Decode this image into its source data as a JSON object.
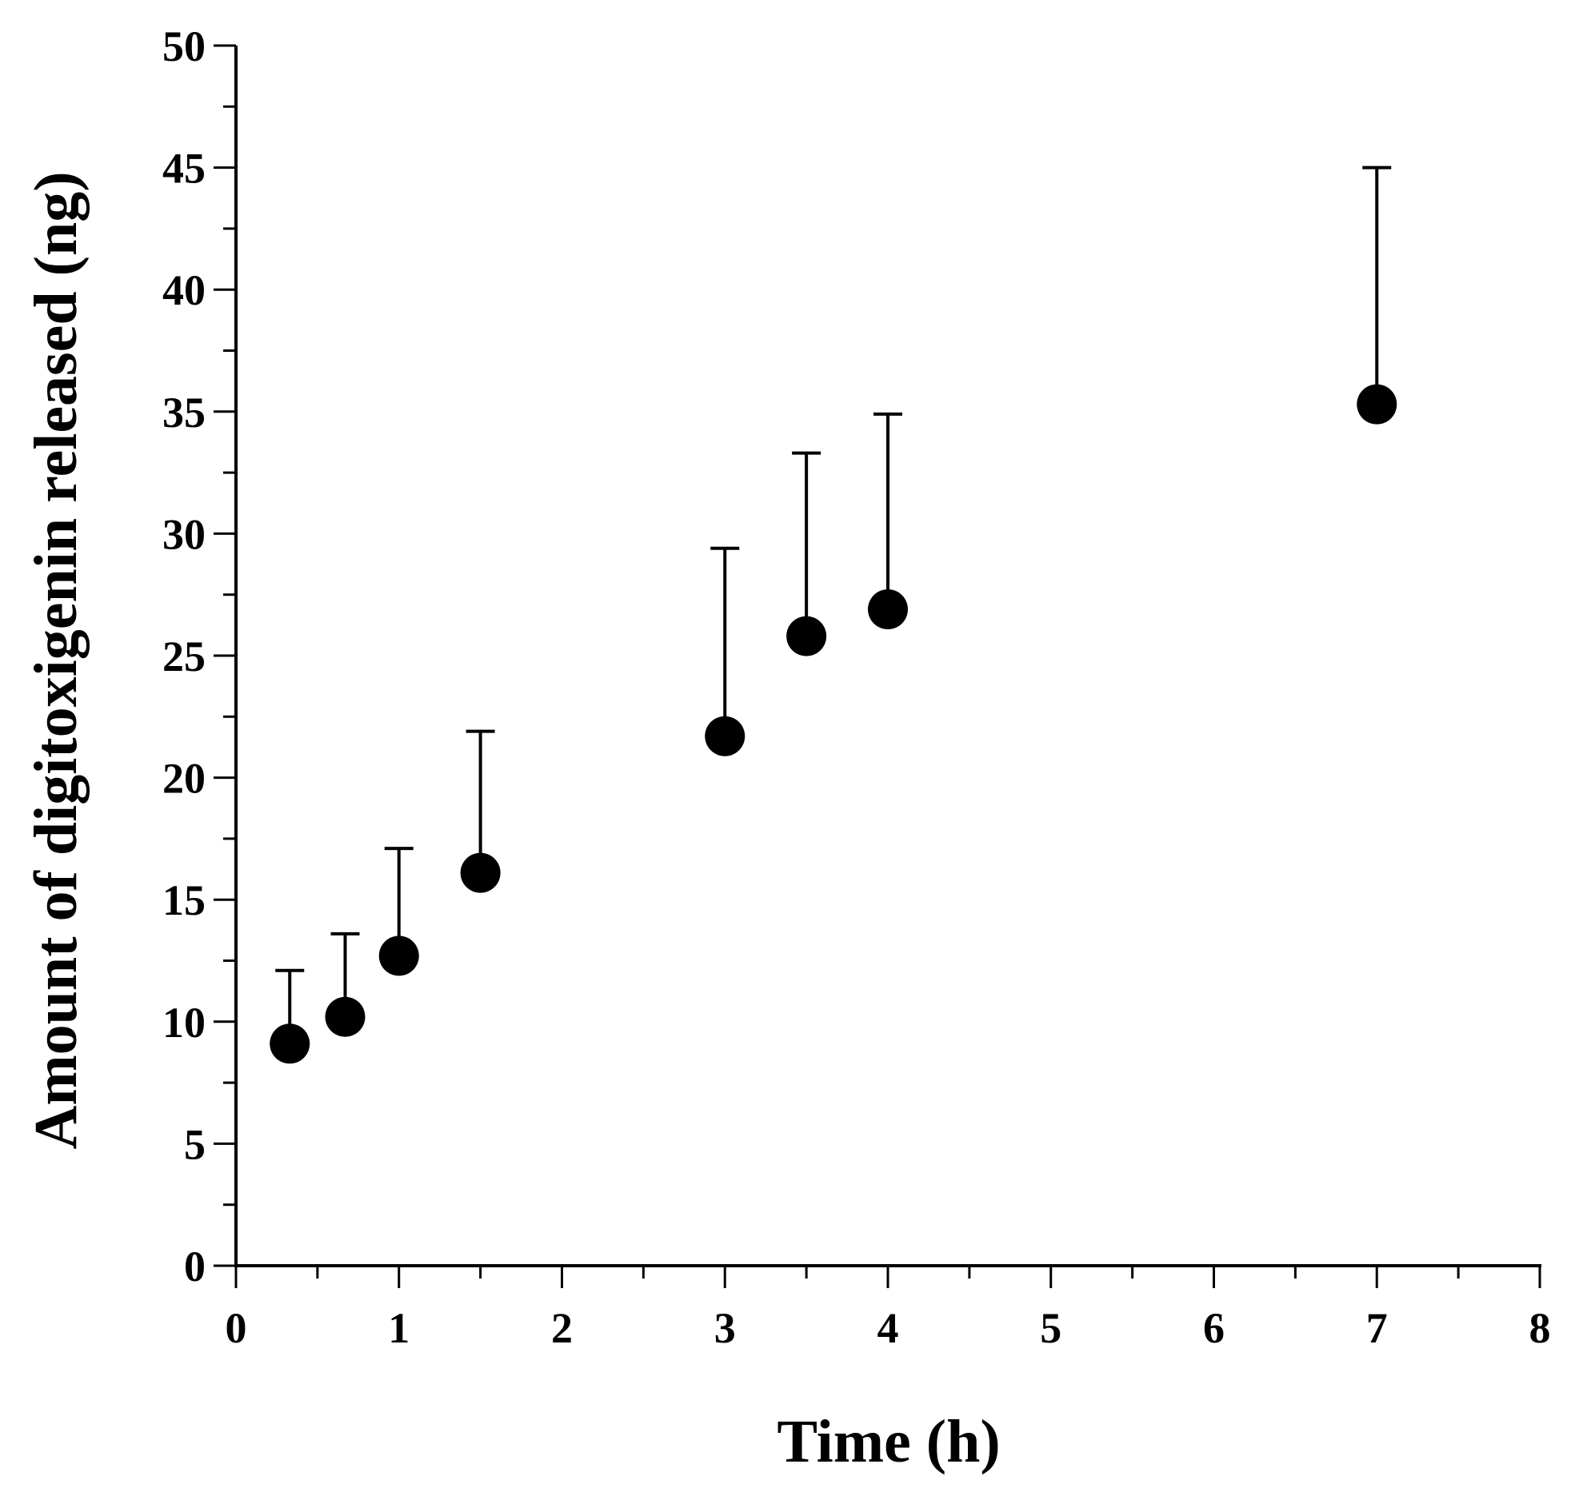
{
  "chart_data": {
    "type": "scatter",
    "title": "",
    "xlabel": "Time (h)",
    "ylabel": "Amount of digitoxigenin released (ng)",
    "xlim": [
      0,
      8
    ],
    "ylim": [
      0,
      50
    ],
    "x_major_ticks": [
      0,
      1,
      2,
      3,
      4,
      5,
      6,
      7,
      8
    ],
    "x_tick_labels": [
      "0",
      "1",
      "2",
      "3",
      "4",
      "5",
      "6",
      "7",
      "8"
    ],
    "x_minor_step": 0.5,
    "y_major_ticks": [
      0,
      5,
      10,
      15,
      20,
      25,
      30,
      35,
      40,
      45,
      50
    ],
    "y_tick_labels": [
      "0",
      "5",
      "10",
      "15",
      "20",
      "25",
      "30",
      "35",
      "40",
      "45",
      "50"
    ],
    "y_minor_step": 2.5,
    "grid": false,
    "legend": "none",
    "series": [
      {
        "name": "digitoxigenin released",
        "color": "#000000",
        "marker": "filled-circle",
        "x": [
          0.33,
          0.67,
          1,
          1.5,
          3,
          3.5,
          4,
          7
        ],
        "y": [
          9.1,
          10.2,
          12.7,
          16.1,
          21.7,
          25.8,
          26.9,
          35.3
        ],
        "error_upper": [
          12.1,
          13.6,
          17.1,
          21.9,
          29.4,
          33.3,
          34.9,
          45.0
        ]
      }
    ]
  }
}
